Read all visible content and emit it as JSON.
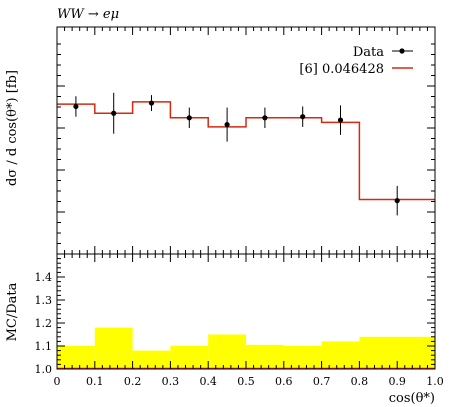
{
  "chart_data": [
    {
      "type": "step-histogram",
      "title": "WW → eμ",
      "ylabel": "dσ / d cos(θ*) [fb]",
      "xlim": [
        0,
        1
      ],
      "ylim": [
        0,
        1
      ],
      "y_ticks_unlabeled": true,
      "legend_placement": "top-right",
      "legend": [
        {
          "label": "Data",
          "color": "#000000",
          "style": "points-with-errorbars"
        },
        {
          "label": "[6] 0.046428",
          "color": "#d62910",
          "style": "line"
        }
      ],
      "bin_edges": [
        0,
        0.1,
        0.2,
        0.3,
        0.4,
        0.5,
        0.6,
        0.7,
        0.8,
        1.0
      ],
      "mc_values": [
        0.66,
        0.62,
        0.67,
        0.6,
        0.56,
        0.6,
        0.6,
        0.58,
        0.24
      ],
      "data_points": {
        "x": [
          0.05,
          0.15,
          0.25,
          0.35,
          0.45,
          0.55,
          0.65,
          0.75,
          0.9
        ],
        "y": [
          0.65,
          0.62,
          0.665,
          0.6,
          0.57,
          0.6,
          0.605,
          0.59,
          0.235
        ],
        "err_up": [
          0.045,
          0.09,
          0.035,
          0.045,
          0.075,
          0.045,
          0.045,
          0.065,
          0.065
        ],
        "err_down": [
          0.045,
          0.09,
          0.035,
          0.045,
          0.075,
          0.045,
          0.045,
          0.065,
          0.065
        ]
      }
    },
    {
      "type": "ratio-band",
      "xlabel": "cos(θ*)",
      "ylabel": "MC/Data",
      "xlim": [
        0,
        1
      ],
      "ylim": [
        1.0,
        1.5
      ],
      "x_ticks": [
        "0",
        "0.1",
        "0.2",
        "0.3",
        "0.4",
        "0.5",
        "0.6",
        "0.7",
        "0.8",
        "0.9",
        "1.0"
      ],
      "y_ticks": [
        "1.0",
        "1.1",
        "1.2",
        "1.3",
        "1.4"
      ],
      "band_color": "#ffff00",
      "bin_edges": [
        0,
        0.1,
        0.2,
        0.3,
        0.4,
        0.5,
        0.6,
        0.7,
        0.8,
        1.0
      ],
      "band_upper": [
        1.1,
        1.18,
        1.08,
        1.1,
        1.15,
        1.105,
        1.1,
        1.12,
        1.14
      ],
      "ratio_line": [
        1.0,
        1.0,
        1.0,
        1.0,
        1.0,
        1.0,
        1.0,
        1.0,
        1.0
      ]
    }
  ]
}
